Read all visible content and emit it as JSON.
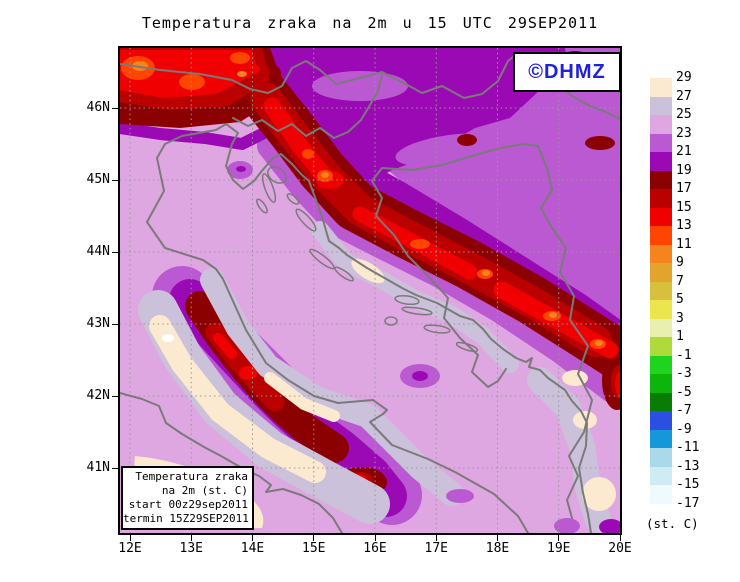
{
  "title": "Temperatura zraka na 2m u 15 UTC 29SEP2011",
  "logo": {
    "text": "©DHMZ"
  },
  "info_box": {
    "lines": [
      "Temperatura zraka",
      "na 2m (st. C)",
      "start 00z29sep2011",
      "termin 15Z29SEP2011"
    ]
  },
  "axes": {
    "lon_ticks": [
      "12E",
      "13E",
      "14E",
      "15E",
      "16E",
      "17E",
      "18E",
      "19E",
      "20E"
    ],
    "lat_ticks": [
      "46N",
      "45N",
      "44N",
      "43N",
      "42N",
      "41N"
    ]
  },
  "colorbar": {
    "unit": "(st. C)",
    "tick_labels": [
      "29",
      "27",
      "25",
      "23",
      "21",
      "19",
      "17",
      "15",
      "13",
      "11",
      "9",
      "7",
      "5",
      "3",
      "1",
      "-1",
      "-3",
      "-5",
      "-7",
      "-9",
      "-11",
      "-13",
      "-15",
      "-17"
    ]
  },
  "map": {
    "colors": {
      "gt29": "#ffffff",
      "29": "#fbe9d0",
      "27": "#cbc1da",
      "25": "#dfa7e1",
      "23": "#bb59d2",
      "21": "#9b09b5",
      "19": "#8b0000",
      "17": "#bb0000",
      "15": "#f00000",
      "13": "#ff4500",
      "11": "#f5831e",
      "9": "#e2a42d",
      "7": "#d9bf3e",
      "5": "#ebe64d",
      "3": "#e9efae",
      "1": "#b0da3a",
      "-1": "#1fd41f",
      "-3": "#0cb40c",
      "-5": "#077d07",
      "-7": "#2b4fe0",
      "-9": "#1598da",
      "-11": "#a9d9eb",
      "-13": "#cfecf5",
      "-15": "#eefafd",
      "coast": "#7a7a7a",
      "grid": "#989898",
      "frame": "#000000",
      "logo_blue": "#2020dd"
    }
  }
}
